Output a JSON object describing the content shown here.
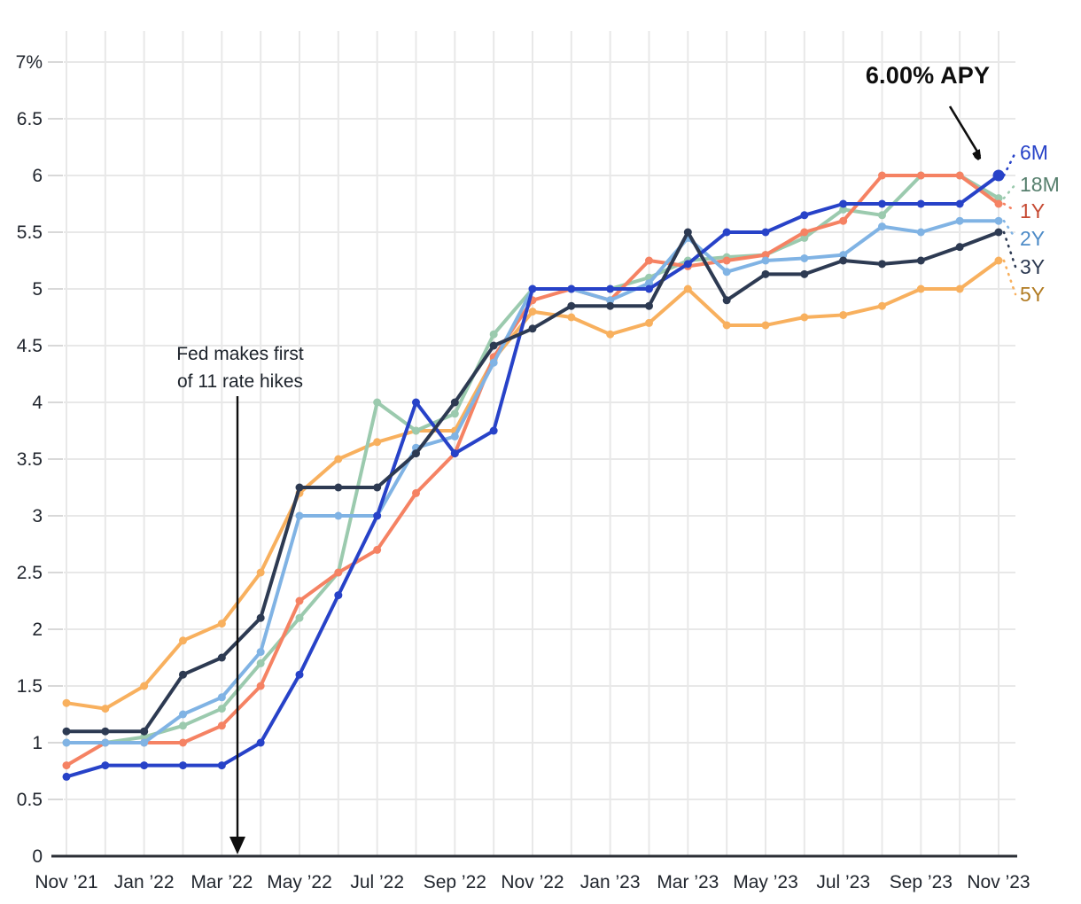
{
  "chart_data": {
    "type": "line",
    "title": "",
    "xlabel": "",
    "ylabel": "",
    "ylim": [
      0,
      7
    ],
    "grid": true,
    "legend_position": "right",
    "y_tick_labels": [
      "0",
      "0.5",
      "1",
      "1.5",
      "2",
      "2.5",
      "3",
      "3.5",
      "4",
      "4.5",
      "5",
      "5.5",
      "6",
      "6.5",
      "7%"
    ],
    "x_tick_labels": [
      "Nov ’21",
      "Jan ’22",
      "Mar ’22",
      "May ’22",
      "Jul ’22",
      "Sep ’22",
      "Nov ’22",
      "Jan ’23",
      "Mar ’23",
      "May ’23",
      "Jul ’23",
      "Sep ’23",
      "Nov ’23"
    ],
    "months_per_tick": 2,
    "series": [
      {
        "name": "6M",
        "color": "#2742c8",
        "label_color": "#2742c8",
        "values": [
          0.7,
          0.8,
          0.8,
          0.8,
          0.8,
          1.0,
          1.6,
          2.3,
          3.0,
          4.0,
          3.55,
          3.75,
          5.0,
          5.0,
          5.0,
          5.0,
          5.22,
          5.5,
          5.5,
          5.65,
          5.75,
          5.75,
          5.75,
          5.75,
          6.0
        ]
      },
      {
        "name": "18M",
        "color": "#9bcaae",
        "label_color": "#567f6d",
        "values": [
          1.0,
          1.0,
          1.05,
          1.15,
          1.3,
          1.7,
          2.1,
          2.5,
          4.0,
          3.75,
          3.9,
          4.6,
          5.0,
          5.0,
          5.0,
          5.1,
          5.25,
          5.28,
          5.3,
          5.45,
          5.7,
          5.65,
          6.0,
          6.0,
          5.8
        ]
      },
      {
        "name": "1Y",
        "color": "#f58263",
        "label_color": "#c64a33",
        "values": [
          0.8,
          1.0,
          1.0,
          1.0,
          1.15,
          1.5,
          2.25,
          2.5,
          2.7,
          3.2,
          3.55,
          4.4,
          4.9,
          5.0,
          4.9,
          5.25,
          5.2,
          5.25,
          5.3,
          5.5,
          5.6,
          6.0,
          6.0,
          6.0,
          5.75
        ]
      },
      {
        "name": "2Y",
        "color": "#80b3e4",
        "label_color": "#4d8bc7",
        "values": [
          1.0,
          1.0,
          1.0,
          1.25,
          1.4,
          1.8,
          3.0,
          3.0,
          3.0,
          3.6,
          3.7,
          4.35,
          5.0,
          5.0,
          4.9,
          5.05,
          5.45,
          5.15,
          5.25,
          5.27,
          5.3,
          5.55,
          5.5,
          5.6,
          5.6
        ]
      },
      {
        "name": "3Y",
        "color": "#2d3a52",
        "label_color": "#2d3a52",
        "values": [
          1.1,
          1.1,
          1.1,
          1.6,
          1.75,
          2.1,
          3.25,
          3.25,
          3.25,
          3.55,
          4.0,
          4.5,
          4.65,
          4.85,
          4.85,
          4.85,
          5.5,
          4.9,
          5.13,
          5.13,
          5.25,
          5.22,
          5.25,
          5.37,
          5.5
        ]
      },
      {
        "name": "5Y",
        "color": "#f8b05e",
        "label_color": "#b17b22",
        "values": [
          1.35,
          1.3,
          1.5,
          1.9,
          2.05,
          2.5,
          3.2,
          3.5,
          3.65,
          3.75,
          3.75,
          4.38,
          4.8,
          4.75,
          4.6,
          4.7,
          5.0,
          4.68,
          4.68,
          4.75,
          4.77,
          4.85,
          5.0,
          5.0,
          5.25
        ]
      }
    ],
    "highlight": {
      "series": "6M",
      "month_index": 24,
      "value": 6.0
    },
    "annotations": {
      "apy_label": "6.00% APY",
      "fed_line1": "Fed makes first",
      "fed_line2": "of 11 rate hikes"
    }
  }
}
